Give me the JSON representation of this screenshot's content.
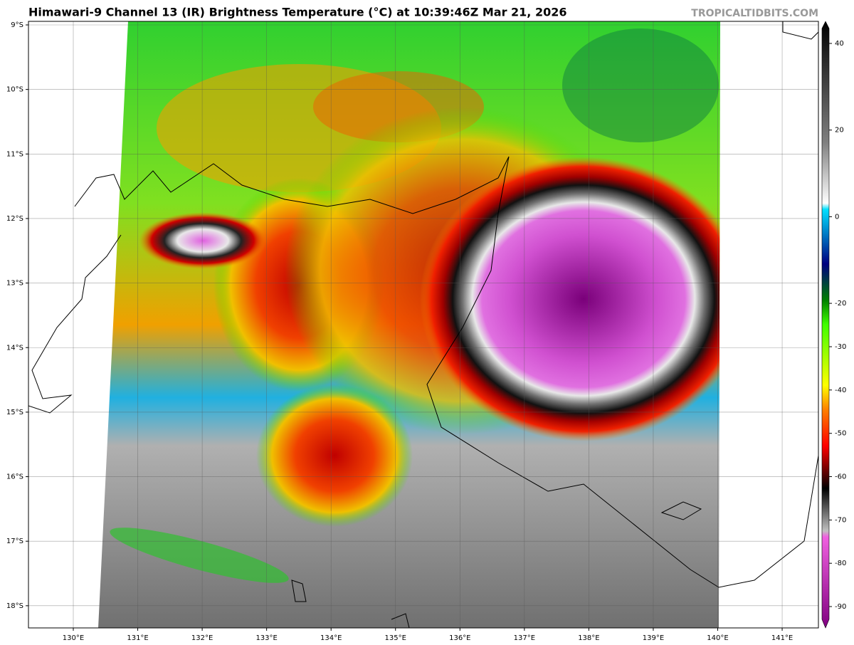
{
  "header": {
    "title": "Himawari-9 Channel 13 (IR) Brightness Temperature (°C) at 10:39:46Z Mar 21, 2026",
    "watermark": "TROPICALTIDBITS.COM"
  },
  "map": {
    "lat_labels": [
      "9°S",
      "10°S",
      "11°S",
      "12°S",
      "13°S",
      "14°S",
      "15°S",
      "16°S",
      "17°S",
      "18°S"
    ],
    "lon_labels": [
      "130°E",
      "131°E",
      "132°E",
      "133°E",
      "134°E",
      "135°E",
      "136°E",
      "137°E",
      "138°E",
      "139°E",
      "140°E",
      "141°E"
    ]
  },
  "colorbar": {
    "ticks": [
      "40",
      "20",
      "0",
      "-20",
      "-30",
      "-40",
      "-50",
      "-60",
      "-70",
      "-80",
      "-90"
    ]
  }
}
